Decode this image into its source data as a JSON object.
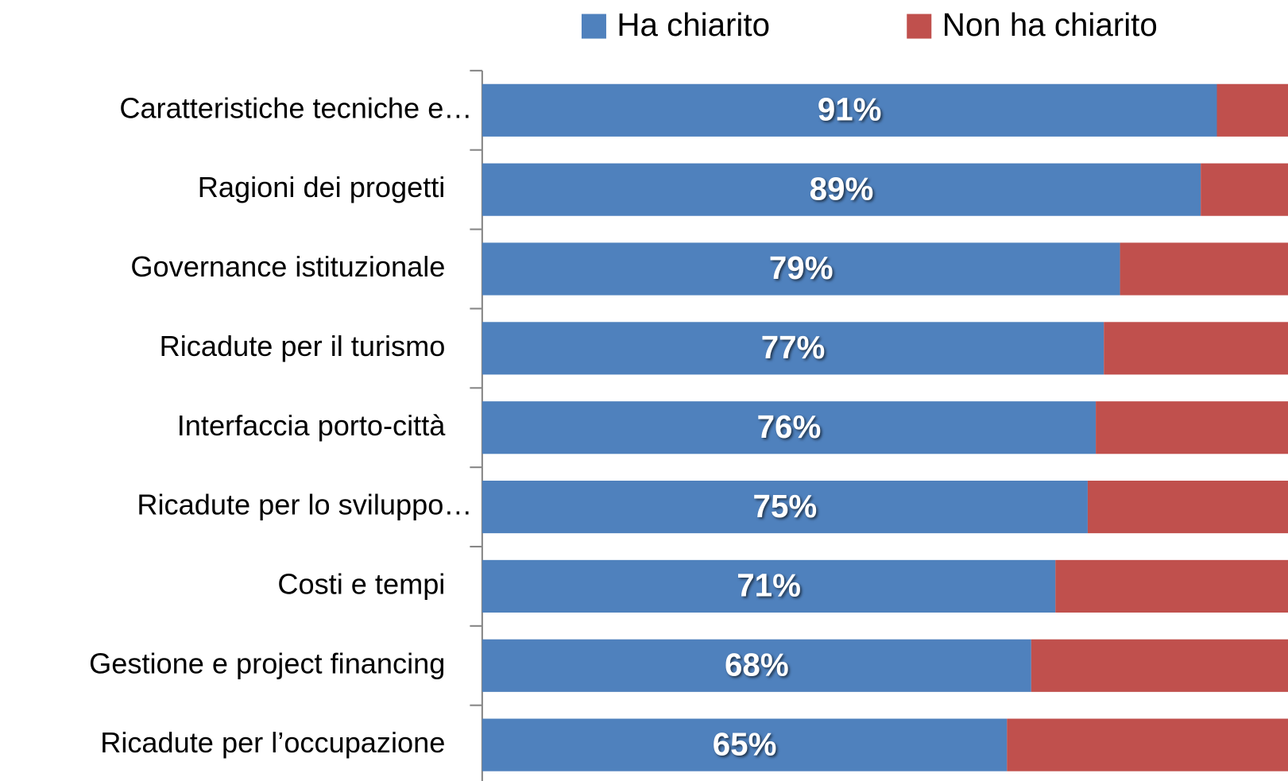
{
  "chart_data": {
    "type": "bar",
    "orientation": "horizontal",
    "stacked": true,
    "categories": [
      "Caratteristiche tecniche e…",
      "Ragioni dei progetti",
      "Governance istituzionale",
      "Ricadute per il turismo",
      "Interfaccia porto-città",
      "Ricadute per lo sviluppo…",
      "Costi e tempi",
      "Gestione e project financing",
      "Ricadute per l’occupazione"
    ],
    "series": [
      {
        "name": "Ha chiarito",
        "color": "#4f81bd",
        "values": [
          91,
          89,
          79,
          77,
          76,
          75,
          71,
          68,
          65
        ],
        "value_labels": [
          "91%",
          "89%",
          "79%",
          "77%",
          "76%",
          "75%",
          "71%",
          "68%",
          "65%"
        ]
      },
      {
        "name": "Non ha chiarito",
        "color": "#c0504d",
        "values": [
          9,
          11,
          21,
          23,
          24,
          25,
          29,
          32,
          35
        ]
      }
    ],
    "xlim": [
      0,
      100
    ],
    "legend": "top"
  }
}
